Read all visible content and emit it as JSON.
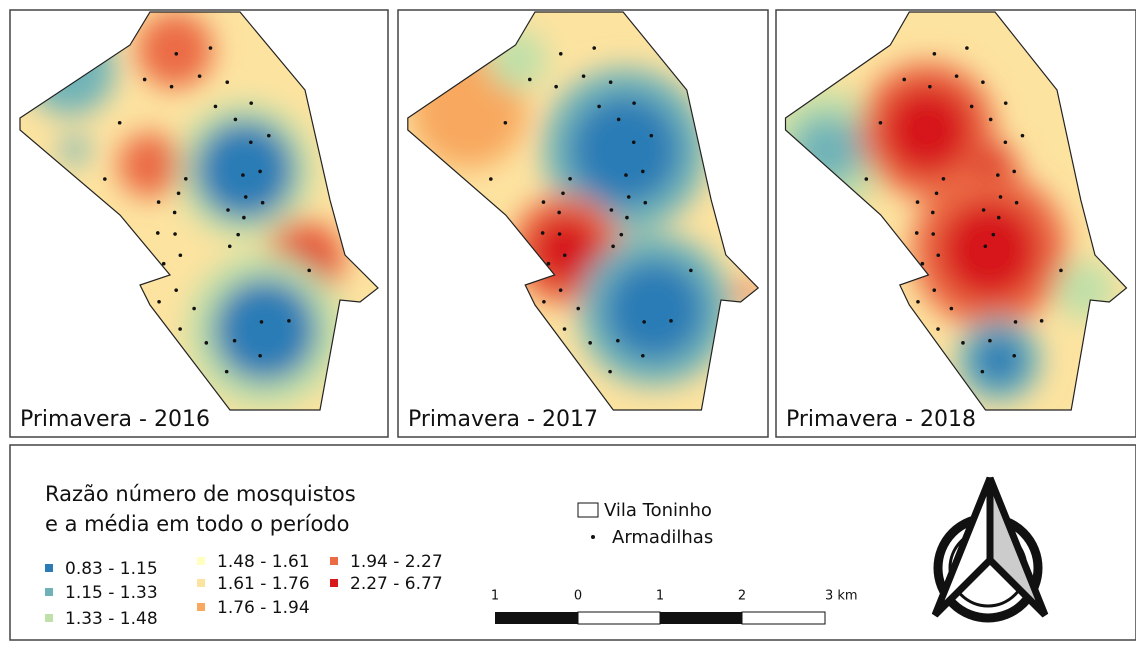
{
  "panels": [
    {
      "title": "Primavera - 2016"
    },
    {
      "title": "Primavera - 2017"
    },
    {
      "title": "Primavera - 2018"
    }
  ],
  "legend": {
    "title_lines": [
      "Razão número de mosquistos",
      "e a média em todo o período"
    ],
    "classes": [
      {
        "label": "0.83 - 1.15",
        "color": "#2c7bb6"
      },
      {
        "label": "1.15 - 1.33",
        "color": "#6fb3b8"
      },
      {
        "label": "1.33 - 1.48",
        "color": "#bfe0a9"
      },
      {
        "label": "1.48 - 1.61",
        "color": "#ffffbf"
      },
      {
        "label": "1.61 - 1.76",
        "color": "#fde3a0"
      },
      {
        "label": "1.76 - 1.94",
        "color": "#f8a85f"
      },
      {
        "label": "1.94 - 2.27",
        "color": "#eb6b45"
      },
      {
        "label": "2.27 - 6.77",
        "color": "#d7191c"
      }
    ],
    "boundary": "Vila Toninho",
    "traps": "Armadilhas"
  },
  "scale_bar": {
    "labels": [
      "1",
      "0",
      "1",
      "2",
      "3 km"
    ]
  }
}
